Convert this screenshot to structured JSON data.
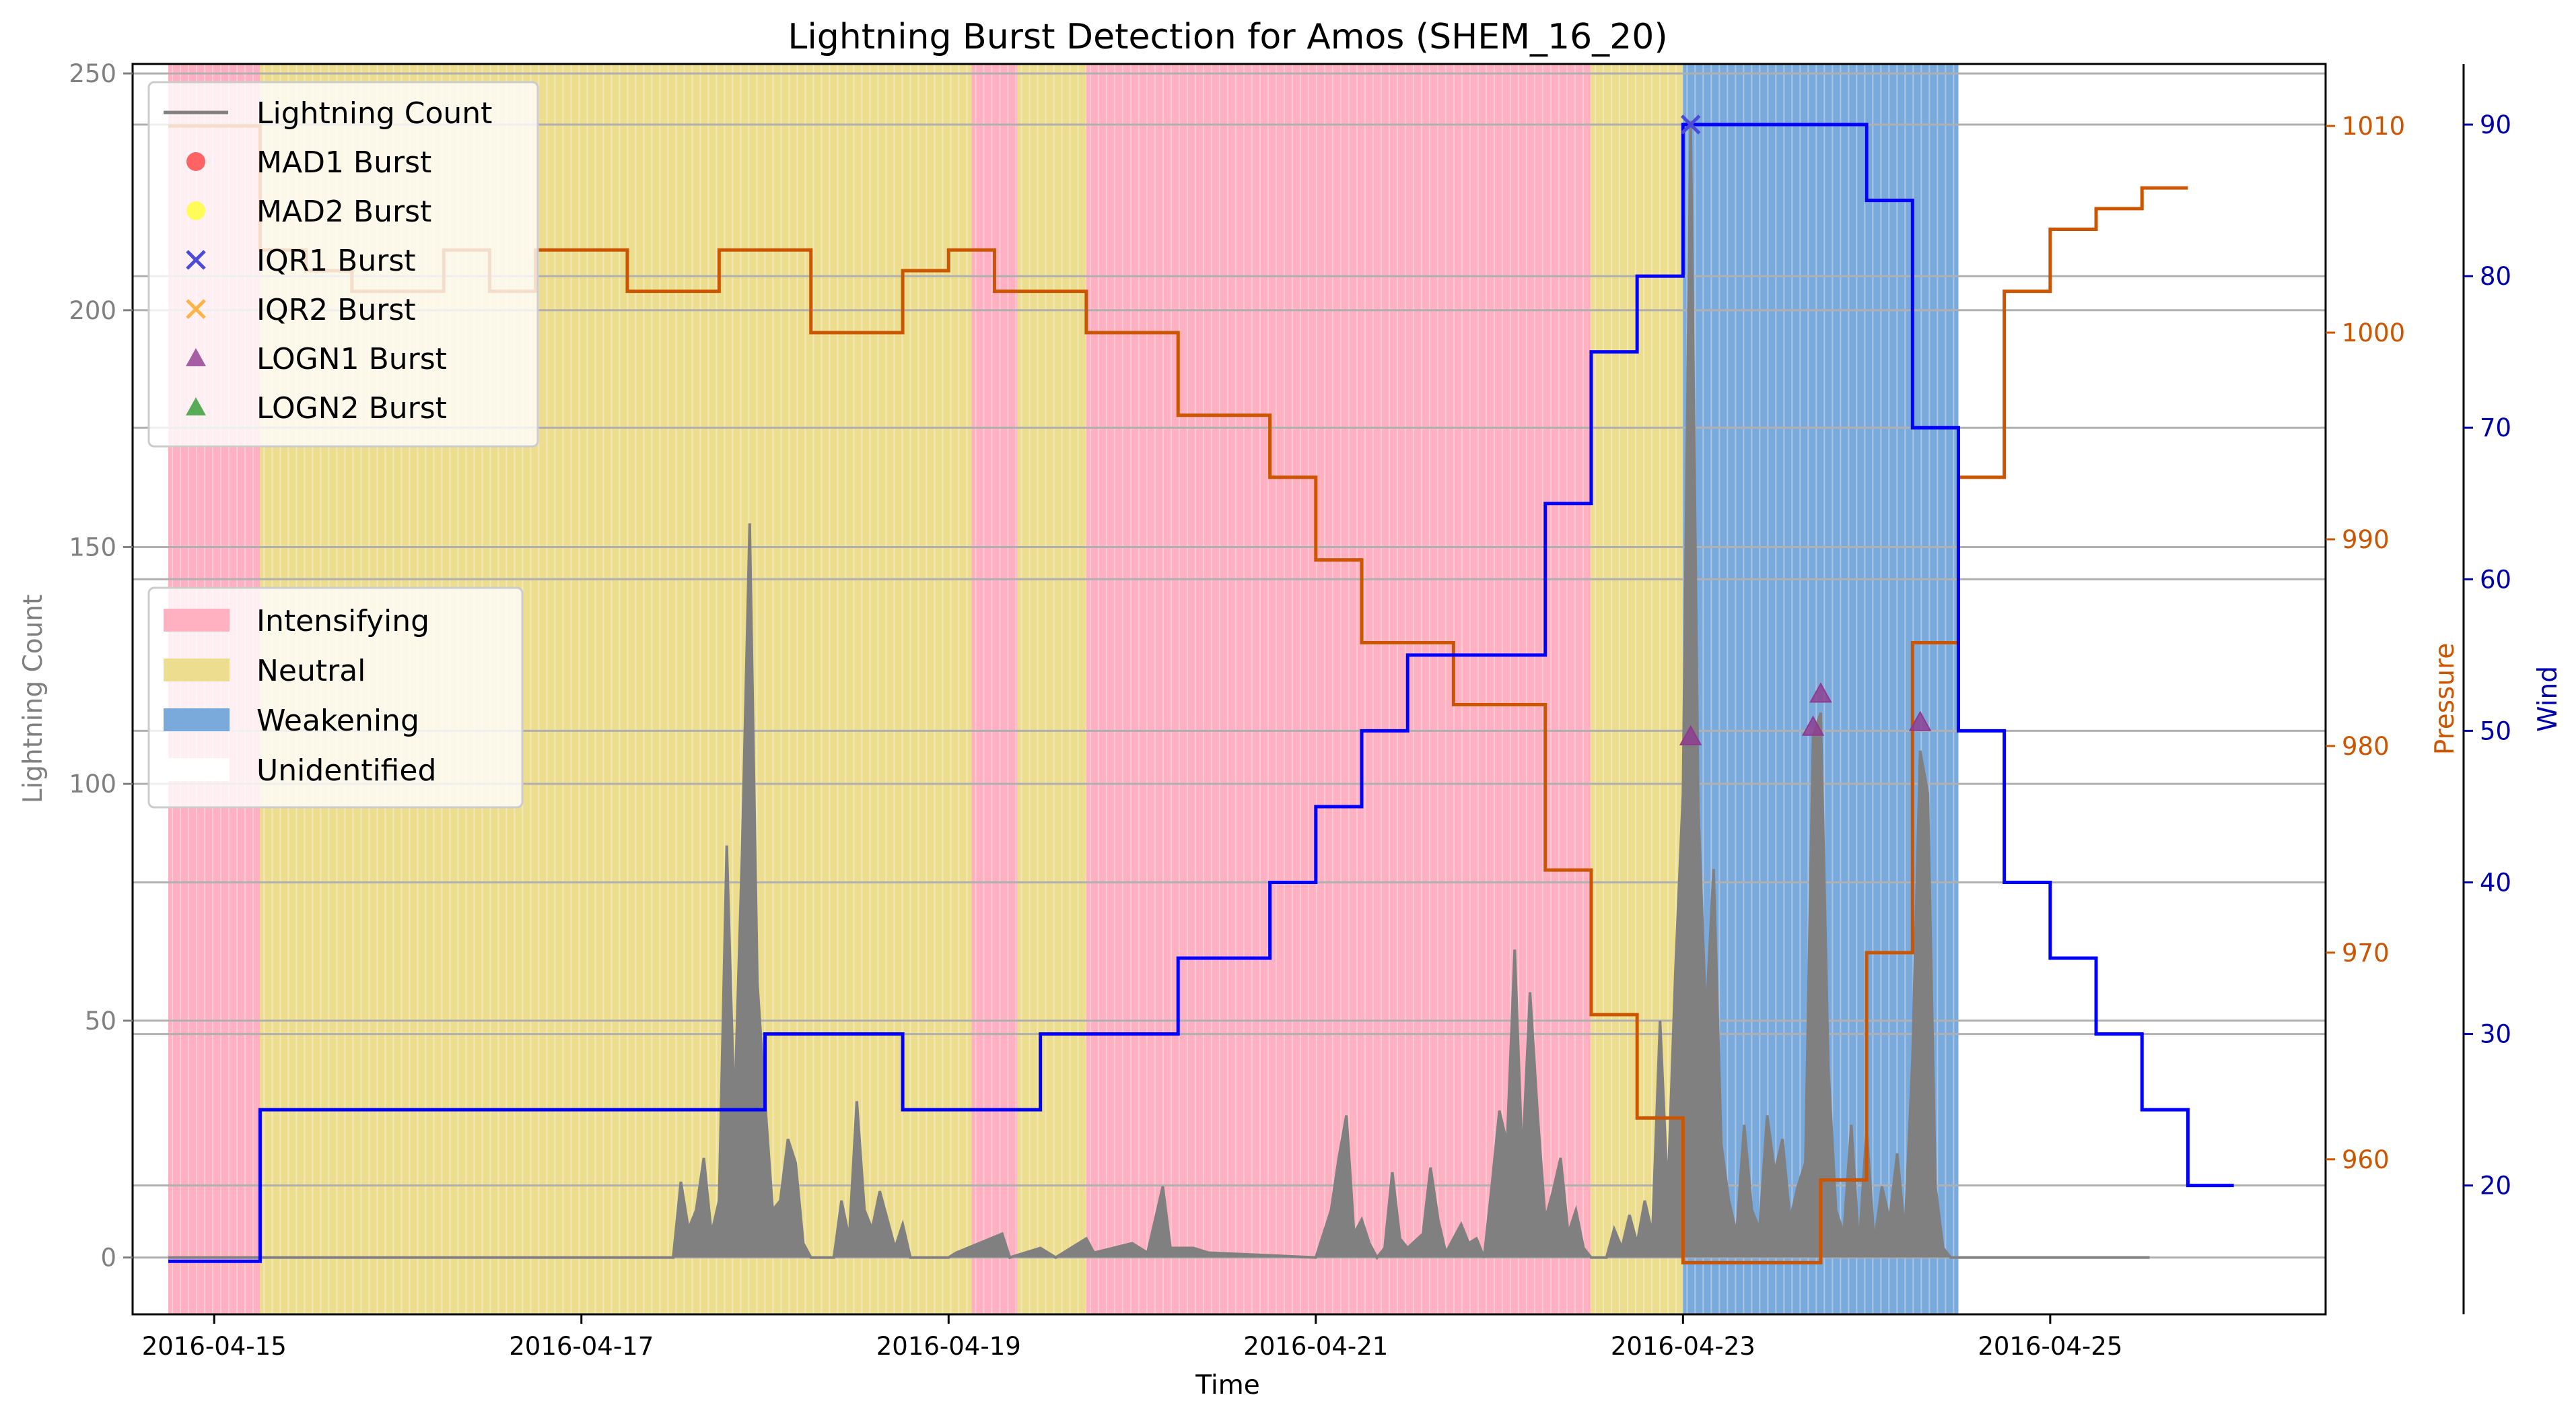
{
  "chart_data": {
    "type": "line",
    "title": "Lightning Burst Detection for Amos (SHEM_16_20)",
    "xlabel": "Time",
    "x_ticks": [
      "2016-04-15",
      "2016-04-17",
      "2016-04-19",
      "2016-04-21",
      "2016-04-23",
      "2016-04-25"
    ],
    "xlim": [
      "2016-04-14T13:20",
      "2016-04-26T12:00"
    ],
    "axes": {
      "lightning": {
        "label": "Lightning Count",
        "ylim": [
          -12,
          252
        ],
        "ticks": [
          0,
          50,
          100,
          150,
          200,
          250
        ],
        "color": "#808080",
        "grid": true
      },
      "pressure": {
        "label": "Pressure",
        "ylim": [
          952.5,
          1013
        ],
        "ticks": [
          960,
          970,
          980,
          990,
          1000,
          1010
        ],
        "color": "#cc5500"
      },
      "wind": {
        "label": "Wind",
        "ylim": [
          11.5,
          94
        ],
        "ticks": [
          20,
          30,
          40,
          50,
          60,
          70,
          80,
          90
        ],
        "color": "#0000aa"
      }
    },
    "phase_colors": {
      "Intensifying": "#ffb0c1",
      "Neutral": "#ecdd8f",
      "Weakening": "#7aa9dc",
      "Unidentified": "#ffffff"
    },
    "phases": [
      {
        "phase": "Intensifying",
        "start": "2016-04-14T18:00",
        "end": "2016-04-15T06:00"
      },
      {
        "phase": "Neutral",
        "start": "2016-04-15T06:00",
        "end": "2016-04-19T03:00"
      },
      {
        "phase": "Intensifying",
        "start": "2016-04-19T03:00",
        "end": "2016-04-19T09:00"
      },
      {
        "phase": "Neutral",
        "start": "2016-04-19T09:00",
        "end": "2016-04-19T18:00"
      },
      {
        "phase": "Intensifying",
        "start": "2016-04-19T18:00",
        "end": "2016-04-22T12:00"
      },
      {
        "phase": "Neutral",
        "start": "2016-04-22T12:00",
        "end": "2016-04-23T00:00"
      },
      {
        "phase": "Weakening",
        "start": "2016-04-23T00:00",
        "end": "2016-04-24T12:00"
      }
    ],
    "series": [
      {
        "name": "Lightning Count",
        "axis": "lightning",
        "style": "area",
        "points": [
          [
            "2016-04-14T18:00",
            0
          ],
          [
            "2016-04-17T12:00",
            0
          ],
          [
            "2016-04-17T13:00",
            16
          ],
          [
            "2016-04-17T14:00",
            6
          ],
          [
            "2016-04-17T15:00",
            10
          ],
          [
            "2016-04-17T16:00",
            21
          ],
          [
            "2016-04-17T17:00",
            5
          ],
          [
            "2016-04-17T18:00",
            12
          ],
          [
            "2016-04-17T19:00",
            87
          ],
          [
            "2016-04-17T20:00",
            30
          ],
          [
            "2016-04-17T21:00",
            85
          ],
          [
            "2016-04-17T22:00",
            155
          ],
          [
            "2016-04-17T23:00",
            58
          ],
          [
            "2016-04-18T00:00",
            33
          ],
          [
            "2016-04-18T01:00",
            10
          ],
          [
            "2016-04-18T02:00",
            12
          ],
          [
            "2016-04-18T03:00",
            25
          ],
          [
            "2016-04-18T04:00",
            20
          ],
          [
            "2016-04-18T05:00",
            3
          ],
          [
            "2016-04-18T06:00",
            0
          ],
          [
            "2016-04-18T09:00",
            0
          ],
          [
            "2016-04-18T10:00",
            12
          ],
          [
            "2016-04-18T11:00",
            4
          ],
          [
            "2016-04-18T12:00",
            33
          ],
          [
            "2016-04-18T13:00",
            10
          ],
          [
            "2016-04-18T14:00",
            6
          ],
          [
            "2016-04-18T15:00",
            14
          ],
          [
            "2016-04-18T16:00",
            8
          ],
          [
            "2016-04-18T17:00",
            2
          ],
          [
            "2016-04-18T18:00",
            7
          ],
          [
            "2016-04-18T19:00",
            0
          ],
          [
            "2016-04-19T00:00",
            0
          ],
          [
            "2016-04-19T01:00",
            1
          ],
          [
            "2016-04-19T07:00",
            5
          ],
          [
            "2016-04-19T08:00",
            0
          ],
          [
            "2016-04-19T12:00",
            2
          ],
          [
            "2016-04-19T14:00",
            0
          ],
          [
            "2016-04-19T18:00",
            4
          ],
          [
            "2016-04-19T19:00",
            1
          ],
          [
            "2016-04-20T00:00",
            3
          ],
          [
            "2016-04-20T02:00",
            1
          ],
          [
            "2016-04-20T04:00",
            15
          ],
          [
            "2016-04-20T05:00",
            2
          ],
          [
            "2016-04-20T08:00",
            2
          ],
          [
            "2016-04-20T10:00",
            1
          ],
          [
            "2016-04-21T00:00",
            0
          ],
          [
            "2016-04-21T02:00",
            10
          ],
          [
            "2016-04-21T03:00",
            21
          ],
          [
            "2016-04-21T04:00",
            30
          ],
          [
            "2016-04-21T05:00",
            5
          ],
          [
            "2016-04-21T06:00",
            8
          ],
          [
            "2016-04-21T07:00",
            3
          ],
          [
            "2016-04-21T08:00",
            0
          ],
          [
            "2016-04-21T09:00",
            2
          ],
          [
            "2016-04-21T10:00",
            18
          ],
          [
            "2016-04-21T11:00",
            4
          ],
          [
            "2016-04-21T12:00",
            2
          ],
          [
            "2016-04-21T14:00",
            5
          ],
          [
            "2016-04-21T15:00",
            19
          ],
          [
            "2016-04-21T16:00",
            8
          ],
          [
            "2016-04-21T17:00",
            1
          ],
          [
            "2016-04-21T19:00",
            7
          ],
          [
            "2016-04-21T20:00",
            3
          ],
          [
            "2016-04-21T21:00",
            4
          ],
          [
            "2016-04-21T22:00",
            0
          ],
          [
            "2016-04-21T23:00",
            15
          ],
          [
            "2016-04-22T00:00",
            31
          ],
          [
            "2016-04-22T01:00",
            24
          ],
          [
            "2016-04-22T02:00",
            65
          ],
          [
            "2016-04-22T03:00",
            20
          ],
          [
            "2016-04-22T04:00",
            56
          ],
          [
            "2016-04-22T05:00",
            30
          ],
          [
            "2016-04-22T06:00",
            8
          ],
          [
            "2016-04-22T07:00",
            14
          ],
          [
            "2016-04-22T08:00",
            21
          ],
          [
            "2016-04-22T09:00",
            5
          ],
          [
            "2016-04-22T10:00",
            10
          ],
          [
            "2016-04-22T11:00",
            2
          ],
          [
            "2016-04-22T12:00",
            0
          ],
          [
            "2016-04-22T14:00",
            0
          ],
          [
            "2016-04-22T15:00",
            6
          ],
          [
            "2016-04-22T16:00",
            2
          ],
          [
            "2016-04-22T17:00",
            9
          ],
          [
            "2016-04-22T18:00",
            3
          ],
          [
            "2016-04-22T19:00",
            12
          ],
          [
            "2016-04-22T20:00",
            5
          ],
          [
            "2016-04-22T21:00",
            50
          ],
          [
            "2016-04-22T22:00",
            13
          ],
          [
            "2016-04-22T23:00",
            60
          ],
          [
            "2016-04-23T00:00",
            98
          ],
          [
            "2016-04-23T01:00",
            240
          ],
          [
            "2016-04-23T02:00",
            95
          ],
          [
            "2016-04-23T03:00",
            50
          ],
          [
            "2016-04-23T04:00",
            82
          ],
          [
            "2016-04-23T05:00",
            24
          ],
          [
            "2016-04-23T06:00",
            12
          ],
          [
            "2016-04-23T07:00",
            5
          ],
          [
            "2016-04-23T08:00",
            28
          ],
          [
            "2016-04-23T09:00",
            10
          ],
          [
            "2016-04-23T10:00",
            6
          ],
          [
            "2016-04-23T11:00",
            30
          ],
          [
            "2016-04-23T12:00",
            18
          ],
          [
            "2016-04-23T13:00",
            25
          ],
          [
            "2016-04-23T14:00",
            8
          ],
          [
            "2016-04-23T15:00",
            15
          ],
          [
            "2016-04-23T16:00",
            20
          ],
          [
            "2016-04-23T17:00",
            110
          ],
          [
            "2016-04-23T18:00",
            115
          ],
          [
            "2016-04-23T19:00",
            40
          ],
          [
            "2016-04-23T20:00",
            10
          ],
          [
            "2016-04-23T21:00",
            5
          ],
          [
            "2016-04-23T22:00",
            28
          ],
          [
            "2016-04-23T23:00",
            2
          ],
          [
            "2016-04-24T00:00",
            27
          ],
          [
            "2016-04-24T01:00",
            3
          ],
          [
            "2016-04-24T02:00",
            15
          ],
          [
            "2016-04-24T03:00",
            8
          ],
          [
            "2016-04-24T04:00",
            22
          ],
          [
            "2016-04-24T05:00",
            5
          ],
          [
            "2016-04-24T06:00",
            42
          ],
          [
            "2016-04-24T07:00",
            107
          ],
          [
            "2016-04-24T08:00",
            98
          ],
          [
            "2016-04-24T09:00",
            15
          ],
          [
            "2016-04-24T10:00",
            2
          ],
          [
            "2016-04-24T11:00",
            0
          ],
          [
            "2016-04-25T13:00",
            0
          ]
        ]
      },
      {
        "name": "Pressure",
        "axis": "pressure",
        "style": "step",
        "color": "#cc5500",
        "points": [
          [
            "2016-04-14T18:00",
            1010
          ],
          [
            "2016-04-15T06:00",
            1004
          ],
          [
            "2016-04-15T12:00",
            1003
          ],
          [
            "2016-04-15T18:00",
            1002
          ],
          [
            "2016-04-16T06:00",
            1004
          ],
          [
            "2016-04-16T12:00",
            1002
          ],
          [
            "2016-04-16T18:00",
            1004
          ],
          [
            "2016-04-17T06:00",
            1002
          ],
          [
            "2016-04-17T18:00",
            1004
          ],
          [
            "2016-04-18T06:00",
            1000
          ],
          [
            "2016-04-18T18:00",
            1003
          ],
          [
            "2016-04-19T00:00",
            1004
          ],
          [
            "2016-04-19T06:00",
            1002
          ],
          [
            "2016-04-19T18:00",
            1000
          ],
          [
            "2016-04-20T06:00",
            996
          ],
          [
            "2016-04-20T18:00",
            993
          ],
          [
            "2016-04-21T00:00",
            989
          ],
          [
            "2016-04-21T06:00",
            985
          ],
          [
            "2016-04-21T18:00",
            982
          ],
          [
            "2016-04-22T06:00",
            974
          ],
          [
            "2016-04-22T12:00",
            967
          ],
          [
            "2016-04-22T18:00",
            962
          ],
          [
            "2016-04-23T00:00",
            955
          ],
          [
            "2016-04-23T18:00",
            959
          ],
          [
            "2016-04-24T00:00",
            970
          ],
          [
            "2016-04-24T06:00",
            985
          ],
          [
            "2016-04-24T12:00",
            993
          ],
          [
            "2016-04-24T18:00",
            1002
          ],
          [
            "2016-04-25T00:00",
            1005
          ],
          [
            "2016-04-25T06:00",
            1006
          ],
          [
            "2016-04-25T12:00",
            1007
          ],
          [
            "2016-04-25T18:00",
            1007
          ]
        ]
      },
      {
        "name": "Wind",
        "axis": "wind",
        "style": "step",
        "color": "#0000ff",
        "points": [
          [
            "2016-04-14T18:00",
            15
          ],
          [
            "2016-04-15T06:00",
            25
          ],
          [
            "2016-04-18T00:00",
            30
          ],
          [
            "2016-04-18T18:00",
            25
          ],
          [
            "2016-04-19T12:00",
            30
          ],
          [
            "2016-04-20T06:00",
            35
          ],
          [
            "2016-04-20T18:00",
            40
          ],
          [
            "2016-04-21T00:00",
            45
          ],
          [
            "2016-04-21T06:00",
            50
          ],
          [
            "2016-04-21T12:00",
            55
          ],
          [
            "2016-04-22T06:00",
            65
          ],
          [
            "2016-04-22T12:00",
            75
          ],
          [
            "2016-04-22T18:00",
            80
          ],
          [
            "2016-04-23T00:00",
            90
          ],
          [
            "2016-04-24T00:00",
            85
          ],
          [
            "2016-04-24T06:00",
            70
          ],
          [
            "2016-04-24T12:00",
            50
          ],
          [
            "2016-04-24T18:00",
            40
          ],
          [
            "2016-04-25T00:00",
            35
          ],
          [
            "2016-04-25T06:00",
            30
          ],
          [
            "2016-04-25T12:00",
            25
          ],
          [
            "2016-04-25T18:00",
            20
          ],
          [
            "2016-04-26T00:00",
            20
          ]
        ]
      }
    ],
    "bursts": [
      {
        "method": "IQR1 Burst",
        "time": "2016-04-23T01:00",
        "wind": 90
      },
      {
        "method": "LOGN1 Burst",
        "time": "2016-04-23T01:00",
        "count": 110
      },
      {
        "method": "LOGN1 Burst",
        "time": "2016-04-23T17:00",
        "count": 112
      },
      {
        "method": "LOGN1 Burst",
        "time": "2016-04-23T18:00",
        "count": 119
      },
      {
        "method": "LOGN1 Burst",
        "time": "2016-04-24T07:00",
        "count": 113
      }
    ],
    "legend_series": {
      "placement": "upper-left",
      "entries": [
        {
          "label": "Lightning Count",
          "marker": "line",
          "color": "#808080"
        },
        {
          "label": "MAD1 Burst",
          "marker": "circle",
          "color": "#ff4040"
        },
        {
          "label": "MAD2 Burst",
          "marker": "circle",
          "color": "#ffff33"
        },
        {
          "label": "IQR1 Burst",
          "marker": "x",
          "color": "#4b4bd9"
        },
        {
          "label": "IQR2 Burst",
          "marker": "x",
          "color": "#ffb347"
        },
        {
          "label": "LOGN1 Burst",
          "marker": "triangle",
          "color": "#8e3a8e"
        },
        {
          "label": "LOGN2 Burst",
          "marker": "triangle",
          "color": "#2e9a2e"
        }
      ]
    },
    "legend_phases": {
      "placement": "center-left",
      "entries": [
        {
          "label": "Intensifying",
          "color": "#ffb0c1"
        },
        {
          "label": "Neutral",
          "color": "#ecdd8f"
        },
        {
          "label": "Weakening",
          "color": "#7aa9dc"
        },
        {
          "label": "Unidentified",
          "color": "#ffffff"
        }
      ]
    }
  }
}
